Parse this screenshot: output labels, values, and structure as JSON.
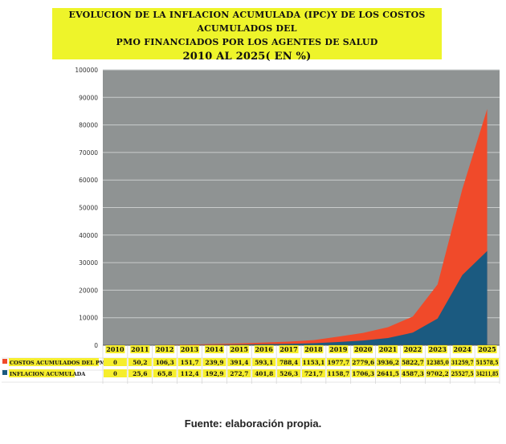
{
  "title_lines": [
    "EVOLUCION DE LA INFLACION ACUMULADA (IPC)Y DE LOS COSTOS ACUMULADOS DEL",
    "PMO FINANCIADOS POR LOS AGENTES DE SALUD",
    "2010 AL 2025( EN %)"
  ],
  "source": "Fuente: elaboración propia.",
  "colors": {
    "plot_bg": "#8f9393",
    "costos": "#f04a2a",
    "inflacion": "#1b5a80",
    "highlight": "#f6ee2c",
    "grid": "#c9cccc"
  },
  "chart_data": {
    "type": "area",
    "stacked": true,
    "categories": [
      "2010",
      "2011",
      "2012",
      "2013",
      "2014",
      "2015",
      "2016",
      "2017",
      "2018",
      "2019",
      "2020",
      "2021",
      "2022",
      "2023",
      "2024",
      "2025"
    ],
    "ylim": [
      0,
      100000
    ],
    "yticks": [
      "0",
      "10000",
      "20000",
      "30000",
      "40000",
      "50000",
      "60000",
      "70000",
      "80000",
      "90000",
      "100000"
    ],
    "grid": true,
    "legend": "table-below",
    "series": [
      {
        "name": "COSTOS ACUMULADOS DEL PMO",
        "values": [
          0,
          50.2,
          106.3,
          151.7,
          239.9,
          391.4,
          593.1,
          788.4,
          1153.1,
          1977.7,
          2779.6,
          3936.2,
          5822.7,
          12385.0,
          31259.7,
          51578.5
        ],
        "labels": [
          "0",
          "50,2",
          "106,3",
          "151,7",
          "239,9",
          "391,4",
          "593,1",
          "788,4",
          "1153,1",
          "1977,7",
          "2779,6",
          "3936,2",
          "5822,7",
          "12385,0",
          "31259,7",
          "51578,5"
        ]
      },
      {
        "name": "INFLACION ACUMULADA",
        "values": [
          0,
          25.6,
          65.8,
          112.4,
          192.9,
          272.7,
          401.8,
          526.3,
          721.7,
          1158.7,
          1706.3,
          2641.5,
          4587.3,
          9702.2,
          25527.5,
          34211.85
        ],
        "labels": [
          "0",
          "25,6",
          "65,8",
          "112,4",
          "192,9",
          "272,7",
          "401,8",
          "526,3",
          "721,7",
          "1158,7",
          "1706,3",
          "2641,5",
          "4587,3",
          "9702,2",
          "25527,5",
          "34211,85"
        ]
      }
    ]
  }
}
